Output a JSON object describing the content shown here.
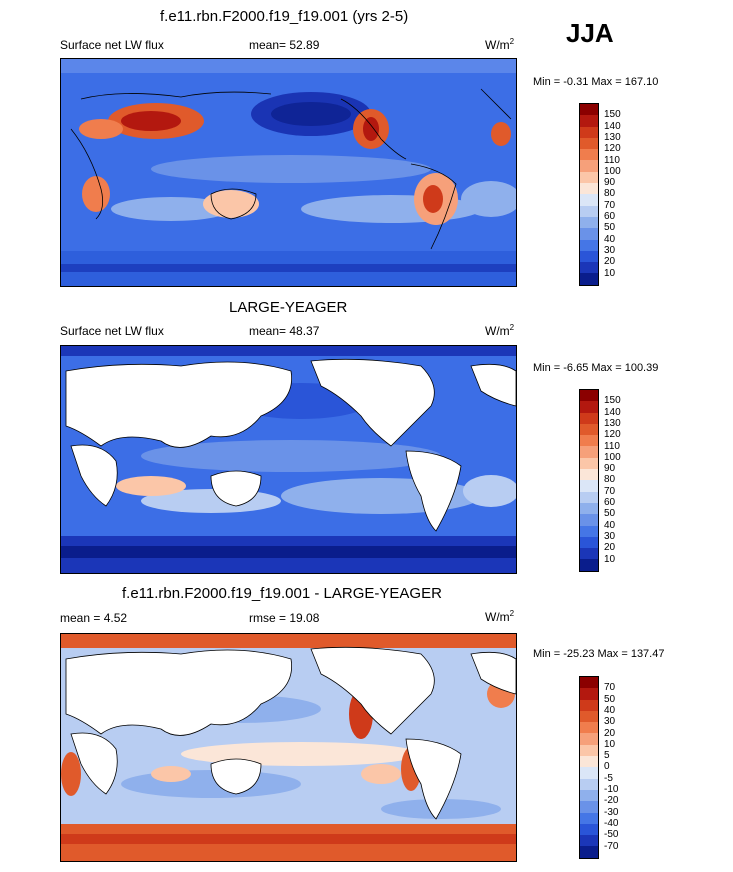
{
  "season": "JJA",
  "panels": [
    {
      "title": "f.e11.rbn.F2000.f19_f19.001 (yrs 2-5)",
      "left_label": "Surface net LW flux",
      "stat": "mean=  52.89",
      "units_main": "W/m",
      "units_sup": "2",
      "minmax": "Min =  -0.31 Max = 167.10",
      "colorbar_labels": [
        "150",
        "140",
        "130",
        "120",
        "110",
        "100",
        "90",
        "80",
        "70",
        "60",
        "50",
        "40",
        "30",
        "20",
        "10"
      ],
      "colors": [
        "#8b0000",
        "#b3180f",
        "#cf3a1a",
        "#e05a2b",
        "#f07d4d",
        "#f6a07a",
        "#fbc6a8",
        "#fbe6d8",
        "#dbe6f7",
        "#b8cdf2",
        "#8fb0ec",
        "#6a92e8",
        "#4576e6",
        "#2a55d8",
        "#1b36b8",
        "#0a1d8c"
      ]
    },
    {
      "title": "LARGE-YEAGER",
      "left_label": "Surface net LW flux",
      "stat": "mean=  48.37",
      "units_main": "W/m",
      "units_sup": "2",
      "minmax": "Min =  -6.65 Max = 100.39",
      "colorbar_labels": [
        "150",
        "140",
        "130",
        "120",
        "110",
        "100",
        "90",
        "80",
        "70",
        "60",
        "50",
        "40",
        "30",
        "20",
        "10"
      ],
      "colors": [
        "#8b0000",
        "#b3180f",
        "#cf3a1a",
        "#e05a2b",
        "#f07d4d",
        "#f6a07a",
        "#fbc6a8",
        "#fbe6d8",
        "#dbe6f7",
        "#b8cdf2",
        "#8fb0ec",
        "#6a92e8",
        "#4576e6",
        "#2a55d8",
        "#1b36b8",
        "#0a1d8c"
      ]
    },
    {
      "title": "f.e11.rbn.F2000.f19_f19.001 - LARGE-YEAGER",
      "left_label": "mean =   4.52",
      "stat": "rmse =  19.08",
      "units_main": "W/m",
      "units_sup": "2",
      "minmax": "Min = -25.23 Max = 137.47",
      "colorbar_labels": [
        "70",
        "50",
        "40",
        "30",
        "20",
        "10",
        "5",
        "0",
        "-5",
        "-10",
        "-20",
        "-30",
        "-40",
        "-50",
        "-70"
      ],
      "colors": [
        "#8b0000",
        "#b3180f",
        "#cf3a1a",
        "#e05a2b",
        "#f07d4d",
        "#f6a07a",
        "#fbc6a8",
        "#fbe6d8",
        "#dbe6f7",
        "#b8cdf2",
        "#8fb0ec",
        "#6a92e8",
        "#4576e6",
        "#2a55d8",
        "#1b36b8",
        "#0a1d8c"
      ]
    }
  ]
}
